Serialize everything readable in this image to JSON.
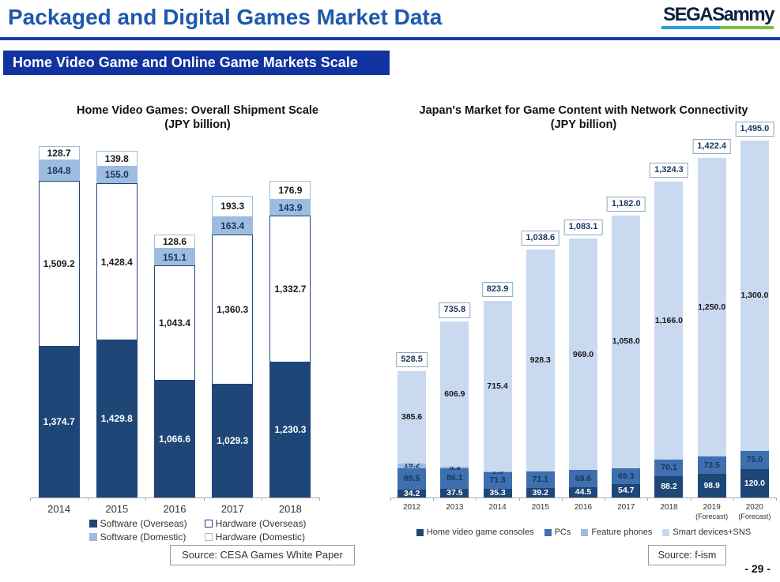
{
  "header": {
    "title": "Packaged and Digital Games Market Data",
    "logo_text": "SEGASammy",
    "banner": "Home Video Game and Online Game Markets Scale",
    "page_number": "- 29 -"
  },
  "colors": {
    "navy": "#1E4676",
    "medium_blue": "#3E6FAE",
    "light_blue": "#9DBCE0",
    "pale_blue": "#C9D9F0",
    "banner_blue": "#10339F",
    "title_blue": "#1D5AAD",
    "logo_underline_blue": "#2AA0D8",
    "logo_underline_green": "#7FBE3F"
  },
  "chart_data": [
    {
      "id": "home-video-games",
      "type": "bar",
      "stacked": true,
      "title": "Home Video Games: Overall Shipment Scale",
      "subtitle": "(JPY billion)",
      "ylabel": "JPY billion",
      "grid": false,
      "legend_position": "bottom",
      "categories": [
        "2014",
        "2015",
        "2016",
        "2017",
        "2018"
      ],
      "series": [
        {
          "name": "Software (Overseas)",
          "values": [
            1374.7,
            1429.8,
            1066.6,
            1029.3,
            1230.3
          ],
          "labels": [
            "1,374.7",
            "1,429.8",
            "1,066.6",
            "1,029.3",
            "1,230.3"
          ],
          "fill": "#1E4676",
          "text": "#FFFFFF"
        },
        {
          "name": "Hardware (Overseas)",
          "values": [
            1509.2,
            1428.4,
            1043.4,
            1360.3,
            1332.7
          ],
          "labels": [
            "1,509.2",
            "1,428.4",
            "1,043.4",
            "1,360.3",
            "1,332.7"
          ],
          "fill": "#FFFFFF",
          "border": "#1E4676",
          "text": "#1A1A1A"
        },
        {
          "name": "Software (Domestic)",
          "values": [
            184.8,
            155.0,
            151.1,
            163.4,
            143.9
          ],
          "labels": [
            "184.8",
            "155.0",
            "151.1",
            "163.4",
            "143.9"
          ],
          "fill": "#9DBCE0",
          "text": "#17365D"
        },
        {
          "name": "Hardware (Domestic)",
          "values": [
            128.7,
            139.8,
            128.6,
            193.3,
            176.9
          ],
          "labels": [
            "128.7",
            "139.8",
            "128.6",
            "193.3",
            "176.9"
          ],
          "fill": "#FFFFFF",
          "border": "#9DBCE0",
          "text": "#1A1A1A"
        }
      ],
      "source": "Source: CESA Games White Paper"
    },
    {
      "id": "network-games",
      "type": "bar",
      "stacked": true,
      "title": "Japan's Market for Game Content with Network Connectivity",
      "subtitle": "(JPY billion)",
      "ylabel": "JPY billion",
      "grid": false,
      "legend_position": "bottom",
      "categories": [
        "2012",
        "2013",
        "2014",
        "2015",
        "2016",
        "2017",
        "2018",
        "2019",
        "2020"
      ],
      "category_sublabels": [
        "",
        "",
        "",
        "",
        "",
        "",
        "",
        "(Forecast)",
        "(Forecast)"
      ],
      "series": [
        {
          "name": "Home video game consoles",
          "values": [
            34.2,
            37.5,
            35.3,
            39.2,
            44.5,
            54.7,
            88.2,
            98.9,
            120.0
          ],
          "labels": [
            "34.2",
            "37.5",
            "35.3",
            "39.2",
            "44.5",
            "54.7",
            "88.2",
            "98.9",
            "120.0"
          ],
          "fill": "#1E4676",
          "text": "#FFFFFF"
        },
        {
          "name": "PCs",
          "values": [
            89.5,
            86.1,
            71.3,
            71.1,
            69.6,
            69.3,
            70.1,
            73.5,
            75.0
          ],
          "labels": [
            "89.5",
            "86.1",
            "71.3",
            "71.1",
            "69.6",
            "69.3",
            "70.1",
            "73.5",
            "75.0"
          ],
          "fill": "#3E6FAE",
          "text": "#17365D"
        },
        {
          "name": "Feature phones",
          "values": [
            19.2,
            5.3,
            1.9,
            0,
            0,
            0,
            0,
            0,
            0
          ],
          "labels": [
            "19.2",
            "5.3",
            "1.9",
            "",
            "",
            "",
            "",
            "",
            ""
          ],
          "fill": "#9DBCE0",
          "text": "#17365D"
        },
        {
          "name": "Smart devices+SNS",
          "values": [
            385.6,
            606.9,
            715.4,
            928.3,
            969.0,
            1058.0,
            1166.0,
            1250.0,
            1300.0
          ],
          "labels": [
            "385.6",
            "606.9",
            "715.4",
            "928.3",
            "969.0",
            "1,058.0",
            "1,166.0",
            "1,250.0",
            "1,300.0"
          ],
          "fill": "#C9D9F0",
          "text": "#1A1A1A"
        }
      ],
      "totals": [
        528.5,
        735.8,
        823.9,
        1038.6,
        1083.1,
        1182.0,
        1324.3,
        1422.4,
        1495.0
      ],
      "total_labels": [
        "528.5",
        "735.8",
        "823.9",
        "1,038.6",
        "1,083.1",
        "1,182.0",
        "1,324.3",
        "1,422.4",
        "1,495.0"
      ],
      "source": "Source: f-ism"
    }
  ]
}
